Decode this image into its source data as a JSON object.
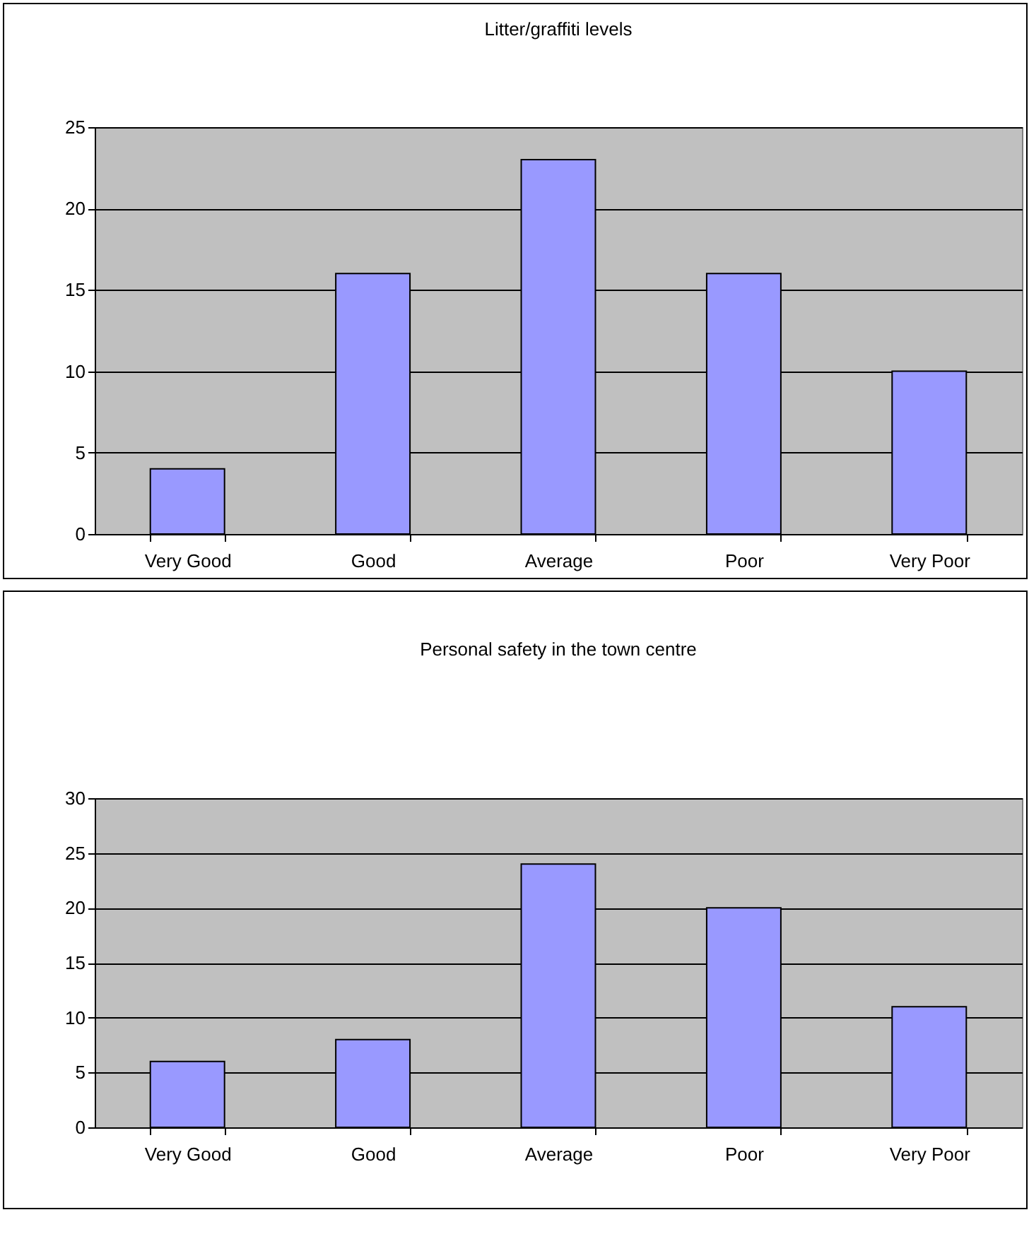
{
  "chart_data": [
    {
      "type": "bar",
      "title": "Litter/graffiti levels",
      "categories": [
        "Very Good",
        "Good",
        "Average",
        "Poor",
        "Very Poor"
      ],
      "values": [
        4,
        16,
        23,
        16,
        10
      ],
      "color": "#9999ff",
      "ylim": [
        0,
        25
      ],
      "yticks": [
        0,
        5,
        10,
        15,
        20,
        25
      ],
      "grid": "y"
    },
    {
      "type": "bar",
      "title": "Personal safety in the town centre",
      "categories": [
        "Very Good",
        "Good",
        "Average",
        "Poor",
        "Very Poor"
      ],
      "values": [
        6,
        8,
        24,
        20,
        11
      ],
      "color": "#9999ff",
      "ylim": [
        0,
        30
      ],
      "yticks": [
        0,
        5,
        10,
        15,
        20,
        25,
        30
      ],
      "grid": "y"
    }
  ]
}
